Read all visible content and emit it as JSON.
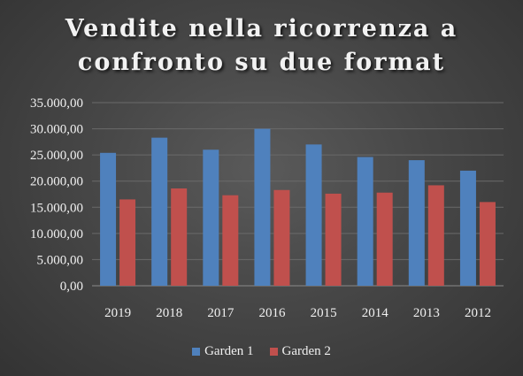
{
  "chart_data": {
    "type": "bar",
    "title_line1": "Vendite nella ricorrenza a",
    "title_line2": "confronto su due format",
    "categories": [
      "2019",
      "2018",
      "2017",
      "2016",
      "2015",
      "2014",
      "2013",
      "2012"
    ],
    "series": [
      {
        "name": "Garden 1",
        "color": "#4f81bd",
        "values": [
          25400,
          28300,
          26000,
          30000,
          27000,
          24600,
          24000,
          22000
        ]
      },
      {
        "name": "Garden 2",
        "color": "#c0504d",
        "values": [
          16500,
          18600,
          17300,
          18300,
          17600,
          17800,
          19200,
          16000
        ]
      }
    ],
    "y_ticks": [
      "0,00",
      "5.000,00",
      "10.000,00",
      "15.000,00",
      "20.000,00",
      "25.000,00",
      "30.000,00",
      "35.000,00"
    ],
    "ylim": [
      0,
      35000
    ],
    "grid": true,
    "legend_position": "bottom"
  }
}
